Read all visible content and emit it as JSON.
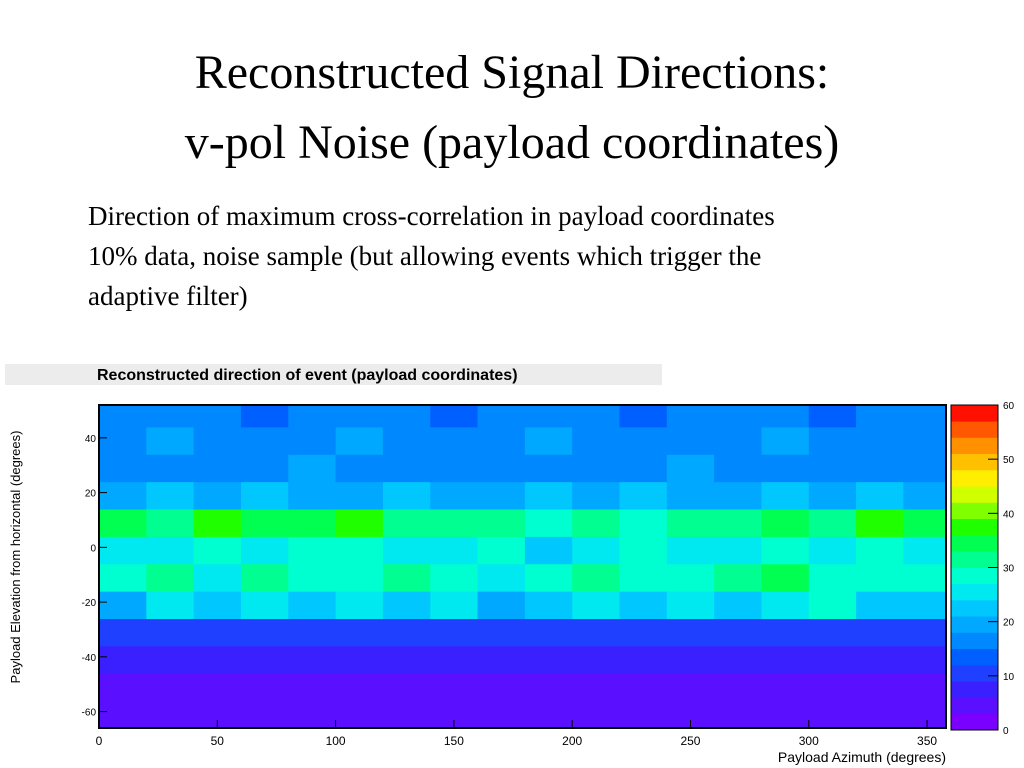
{
  "slide": {
    "title": [
      "Reconstructed Signal Directions:",
      "v-pol Noise (payload coordinates)"
    ],
    "text": [
      "Direction of maximum cross-correlation in payload coordinates",
      "10% data, noise sample (but allowing events which trigger the",
      "adaptive filter)"
    ]
  },
  "chart_data": {
    "type": "heatmap",
    "title": "Reconstructed direction of event (payload coordinates)",
    "x_label": "Payload Azimuth (degrees)",
    "y_label": "Payload Elevation from horizontal (degrees)",
    "xlim": [
      0,
      358
    ],
    "xticks": [
      0,
      50,
      100,
      150,
      200,
      250,
      300,
      350
    ],
    "ylim": [
      -66,
      52
    ],
    "yticks": [
      -60,
      -40,
      -20,
      0,
      20,
      40
    ],
    "zlim": [
      0,
      60
    ],
    "zticks": [
      0,
      10,
      20,
      30,
      40,
      50,
      60
    ],
    "palette": [
      "#7a00ff",
      "#5a10ff",
      "#3a20ff",
      "#2040ff",
      "#0060ff",
      "#0088ff",
      "#00a8ff",
      "#00c8ff",
      "#00e8f0",
      "#00ffd0",
      "#00ff90",
      "#00ff50",
      "#20ff00",
      "#80ff00",
      "#d0ff00",
      "#ffee00",
      "#ffc000",
      "#ff9000",
      "#ff5800",
      "#ff1000"
    ],
    "xbins": [
      0,
      20,
      40,
      60,
      80,
      100,
      120,
      140,
      160,
      180,
      200,
      220,
      240,
      260,
      280,
      300,
      320,
      340,
      360
    ],
    "ybins": [
      -66,
      -56,
      -46,
      -36,
      -26,
      -16,
      -6,
      4,
      14,
      24,
      34,
      44,
      52
    ],
    "z": [
      [
        3,
        4,
        3,
        3,
        4,
        3,
        4,
        3,
        3,
        4,
        3,
        3,
        4,
        3,
        3,
        4,
        3,
        3
      ],
      [
        4,
        5,
        4,
        5,
        4,
        4,
        5,
        4,
        4,
        5,
        4,
        4,
        5,
        4,
        4,
        5,
        4,
        4
      ],
      [
        6,
        7,
        6,
        6,
        7,
        6,
        6,
        7,
        6,
        6,
        7,
        6,
        6,
        7,
        6,
        6,
        7,
        6
      ],
      [
        9,
        10,
        9,
        9,
        10,
        9,
        9,
        10,
        9,
        9,
        10,
        9,
        9,
        10,
        9,
        9,
        10,
        9
      ],
      [
        20,
        24,
        22,
        26,
        21,
        24,
        22,
        25,
        20,
        23,
        26,
        22,
        24,
        21,
        25,
        27,
        23,
        21
      ],
      [
        28,
        30,
        26,
        31,
        29,
        27,
        30,
        28,
        26,
        29,
        32,
        28,
        27,
        30,
        33,
        29,
        27,
        28
      ],
      [
        24,
        26,
        28,
        25,
        27,
        29,
        24,
        26,
        28,
        23,
        25,
        27,
        24,
        26,
        28,
        25,
        27,
        24
      ],
      [
        34,
        32,
        36,
        33,
        35,
        38,
        32,
        30,
        31,
        29,
        30,
        28,
        32,
        30,
        33,
        31,
        36,
        34
      ],
      [
        20,
        21,
        19,
        22,
        20,
        18,
        21,
        20,
        19,
        21,
        20,
        22,
        19,
        20,
        21,
        19,
        22,
        20
      ],
      [
        16,
        17,
        15,
        16,
        18,
        16,
        15,
        17,
        16,
        15,
        17,
        16,
        18,
        16,
        15,
        17,
        16,
        15
      ],
      [
        17,
        18,
        16,
        17,
        16,
        18,
        17,
        16,
        17,
        18,
        16,
        17,
        16,
        17,
        18,
        16,
        17,
        16
      ],
      [
        15,
        16,
        15,
        14,
        16,
        15,
        16,
        14,
        15,
        16,
        15,
        14,
        16,
        15,
        16,
        14,
        15,
        16
      ]
    ]
  }
}
